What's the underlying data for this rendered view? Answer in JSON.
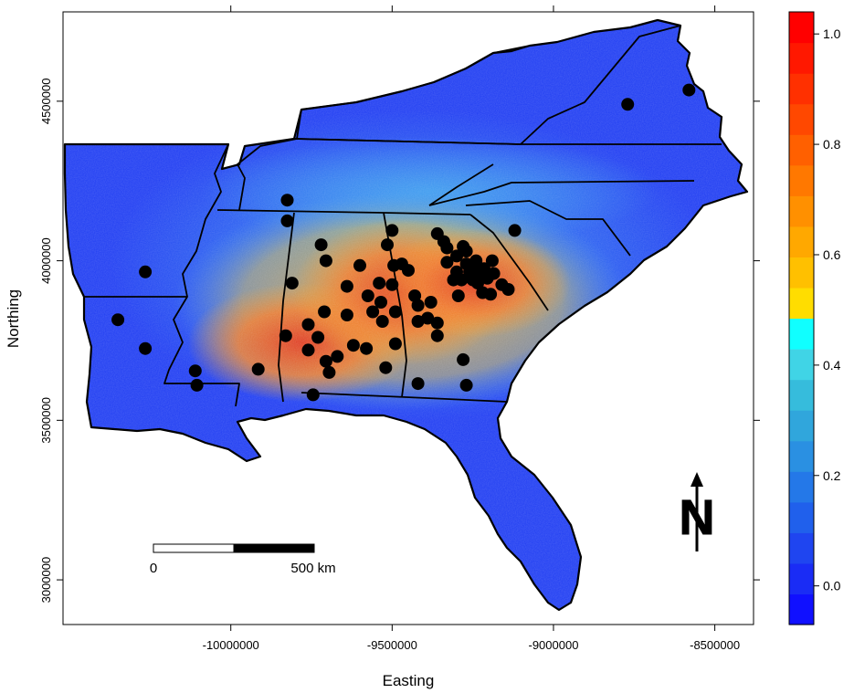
{
  "axes": {
    "xlabel": "Easting",
    "ylabel": "Northing",
    "x_ticks": [
      "-10000000",
      "-9500000",
      "-9000000",
      "-8500000"
    ],
    "y_ticks": [
      "3000000",
      "3500000",
      "4000000",
      "4500000"
    ],
    "x_tick_values": [
      -10000000,
      -9500000,
      -9000000,
      -8500000
    ],
    "y_tick_values": [
      3000000,
      3500000,
      4000000,
      4500000
    ],
    "xlim": [
      -10520000,
      -8380000
    ],
    "ylim": [
      2860000,
      4780000
    ]
  },
  "colorbar": {
    "range": [
      -0.07,
      1.04
    ],
    "ticks": [
      "0.0",
      "0.2",
      "0.4",
      "0.6",
      "0.8",
      "1.0"
    ],
    "tick_values": [
      0.0,
      0.2,
      0.4,
      0.6,
      0.8,
      1.0
    ],
    "colors": [
      "#1010ff",
      "#1a2cf5",
      "#1f45f0",
      "#2060ec",
      "#2478e8",
      "#2a90e2",
      "#30a6dc",
      "#36bcdc",
      "#40d4e6",
      "#10ffff",
      "#ffdd00",
      "#ffc000",
      "#ffa800",
      "#ff9000",
      "#ff7800",
      "#ff6000",
      "#ff4800",
      "#ff3000",
      "#ff1800",
      "#ff0000"
    ]
  },
  "scale_bar": {
    "start_label": "0",
    "end_label": "500 km"
  },
  "north_arrow": {
    "letter": "N"
  },
  "map_colors": {
    "ocean": "#ffffff",
    "low": "#1a3cf0",
    "mid": "#4aa8ec",
    "high": "#f2782a",
    "peak": "#e23c1c",
    "points": "#000000"
  },
  "sample_points": [
    [
      -10350000,
      3815000
    ],
    [
      -10265000,
      3965000
    ],
    [
      -10265000,
      3725000
    ],
    [
      -10110000,
      3655000
    ],
    [
      -10105000,
      3610000
    ],
    [
      -9915000,
      3660000
    ],
    [
      -9825000,
      4190000
    ],
    [
      -9825000,
      4125000
    ],
    [
      -9810000,
      3930000
    ],
    [
      -9830000,
      3765000
    ],
    [
      -9760000,
      3800000
    ],
    [
      -9760000,
      3720000
    ],
    [
      -9745000,
      3580000
    ],
    [
      -9720000,
      4050000
    ],
    [
      -9705000,
      4000000
    ],
    [
      -9730000,
      3760000
    ],
    [
      -9710000,
      3840000
    ],
    [
      -9705000,
      3685000
    ],
    [
      -9695000,
      3650000
    ],
    [
      -9670000,
      3700000
    ],
    [
      -9640000,
      3920000
    ],
    [
      -9640000,
      3830000
    ],
    [
      -9620000,
      3735000
    ],
    [
      -9600000,
      3985000
    ],
    [
      -9580000,
      3725000
    ],
    [
      -9575000,
      3890000
    ],
    [
      -9560000,
      3840000
    ],
    [
      -9540000,
      3930000
    ],
    [
      -9535000,
      3870000
    ],
    [
      -9530000,
      3810000
    ],
    [
      -9515000,
      4050000
    ],
    [
      -9520000,
      3665000
    ],
    [
      -9495000,
      3985000
    ],
    [
      -9500000,
      4095000
    ],
    [
      -9500000,
      3925000
    ],
    [
      -9490000,
      3840000
    ],
    [
      -9490000,
      3740000
    ],
    [
      -9470000,
      3990000
    ],
    [
      -9450000,
      3970000
    ],
    [
      -9430000,
      3890000
    ],
    [
      -9420000,
      3860000
    ],
    [
      -9420000,
      3810000
    ],
    [
      -9420000,
      3615000
    ],
    [
      -9390000,
      3820000
    ],
    [
      -9380000,
      3870000
    ],
    [
      -9360000,
      4085000
    ],
    [
      -9360000,
      3805000
    ],
    [
      -9360000,
      3765000
    ],
    [
      -9340000,
      4060000
    ],
    [
      -9330000,
      4040000
    ],
    [
      -9330000,
      3995000
    ],
    [
      -9310000,
      3940000
    ],
    [
      -9300000,
      4015000
    ],
    [
      -9300000,
      3965000
    ],
    [
      -9295000,
      3890000
    ],
    [
      -9285000,
      3940000
    ],
    [
      -9280000,
      4045000
    ],
    [
      -9270000,
      4030000
    ],
    [
      -9270000,
      3990000
    ],
    [
      -9260000,
      3965000
    ],
    [
      -9250000,
      3940000
    ],
    [
      -9240000,
      4000000
    ],
    [
      -9240000,
      3990000
    ],
    [
      -9235000,
      3930000
    ],
    [
      -9225000,
      3960000
    ],
    [
      -9220000,
      3900000
    ],
    [
      -9215000,
      3975000
    ],
    [
      -9205000,
      3945000
    ],
    [
      -9195000,
      3895000
    ],
    [
      -9190000,
      4000000
    ],
    [
      -9185000,
      3960000
    ],
    [
      -9160000,
      3925000
    ],
    [
      -9140000,
      3910000
    ],
    [
      -9120000,
      4095000
    ],
    [
      -9280000,
      3690000
    ],
    [
      -9270000,
      3610000
    ],
    [
      -8770000,
      4490000
    ],
    [
      -8580000,
      4535000
    ]
  ]
}
